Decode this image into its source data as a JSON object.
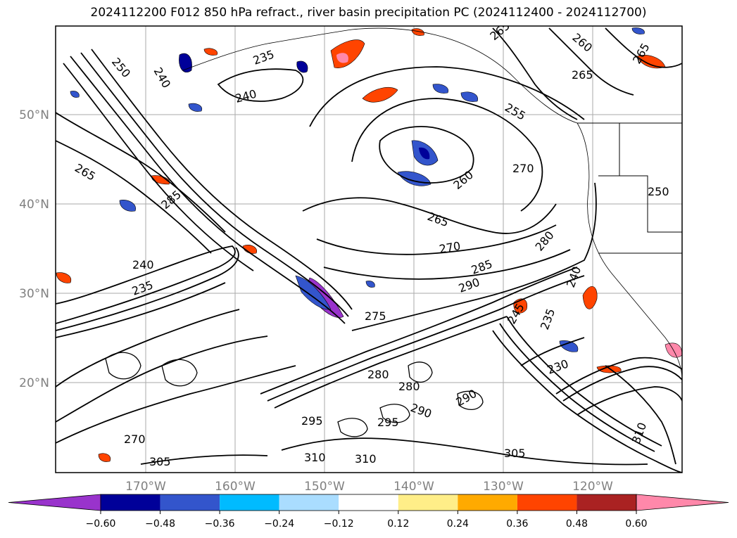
{
  "title": "2024112200 F012 850 hPa refract., river basin precipitation PC (2024112400 - 2024112700)",
  "latitude_labels": [
    "50°N",
    "40°N",
    "30°N",
    "20°N"
  ],
  "longitude_labels": [
    "170°W",
    "160°W",
    "150°W",
    "140°W",
    "130°W",
    "120°W"
  ],
  "colorbar": {
    "ticks": [
      "−0.60",
      "−0.48",
      "−0.36",
      "−0.24",
      "−0.12",
      "0.12",
      "0.24",
      "0.36",
      "0.48",
      "0.60"
    ],
    "colors": [
      "#9933cc",
      "#000099",
      "#3355cc",
      "#00bbff",
      "#aaddff",
      "#ffffff",
      "#ffee88",
      "#ffaa00",
      "#ff4400",
      "#aa2222",
      "#ff88aa"
    ]
  },
  "contour_labels": [
    "250",
    "240",
    "235",
    "240",
    "265",
    "260",
    "265",
    "265",
    "255",
    "270",
    "260",
    "265",
    "270",
    "265",
    "285",
    "275",
    "285",
    "290",
    "280",
    "230",
    "235",
    "240",
    "245",
    "240",
    "235",
    "280",
    "290",
    "290",
    "295",
    "295",
    "310",
    "305",
    "305",
    "310",
    "310",
    "270",
    "280",
    "250"
  ]
}
